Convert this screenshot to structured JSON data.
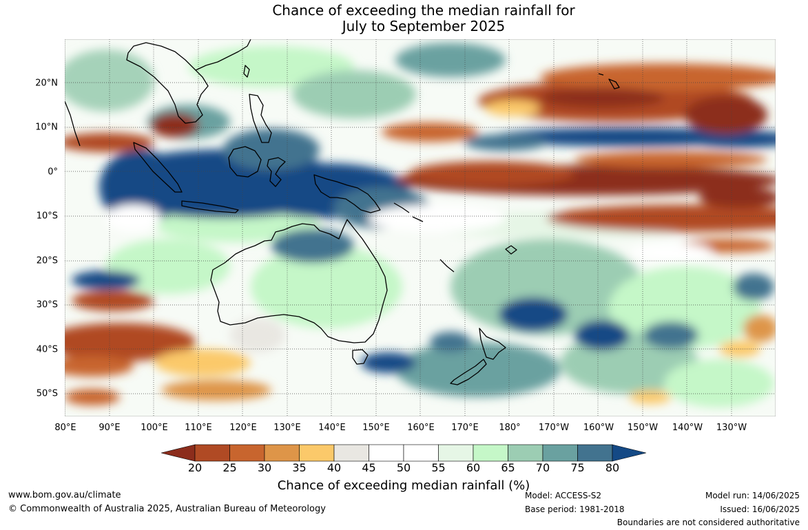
{
  "title": {
    "line1": "Chance of exceeding the median rainfall for",
    "line2": "July to September 2025"
  },
  "map": {
    "lat_labels": [
      "20°N",
      "10°N",
      "0°",
      "10°S",
      "20°S",
      "30°S",
      "40°S",
      "50°S"
    ],
    "lon_labels": [
      "80°E",
      "90°E",
      "100°E",
      "110°E",
      "120°E",
      "130°E",
      "140°E",
      "150°E",
      "160°E",
      "170°E",
      "180°",
      "170°W",
      "160°W",
      "150°W",
      "140°W",
      "130°W"
    ]
  },
  "colorbar": {
    "ticks": [
      "20",
      "25",
      "30",
      "35",
      "40",
      "45",
      "50",
      "55",
      "60",
      "65",
      "70",
      "75",
      "80"
    ],
    "colors": [
      "#8c2d1c",
      "#b04a24",
      "#c8652e",
      "#de9548",
      "#fbc96a",
      "#e9e7e2",
      "#ffffff",
      "#ffffff",
      "#e6f6e6",
      "#c5f7c8",
      "#9ccdb3",
      "#6aa1a0",
      "#42738f",
      "#144985"
    ],
    "title": "Chance of exceeding median rainfall (%)"
  },
  "footer": {
    "website": "www.bom.gov.au/climate",
    "copyright": "© Commonwealth of Australia 2025, Australian Bureau of Meteorology",
    "model": "Model: ACCESS-S2",
    "base_period": "Base period: 1981-2018",
    "model_run": "Model run: 14/06/2025",
    "issued": "Issued: 16/06/2025",
    "disclaimer": "Boundaries are not considered authoritative"
  }
}
